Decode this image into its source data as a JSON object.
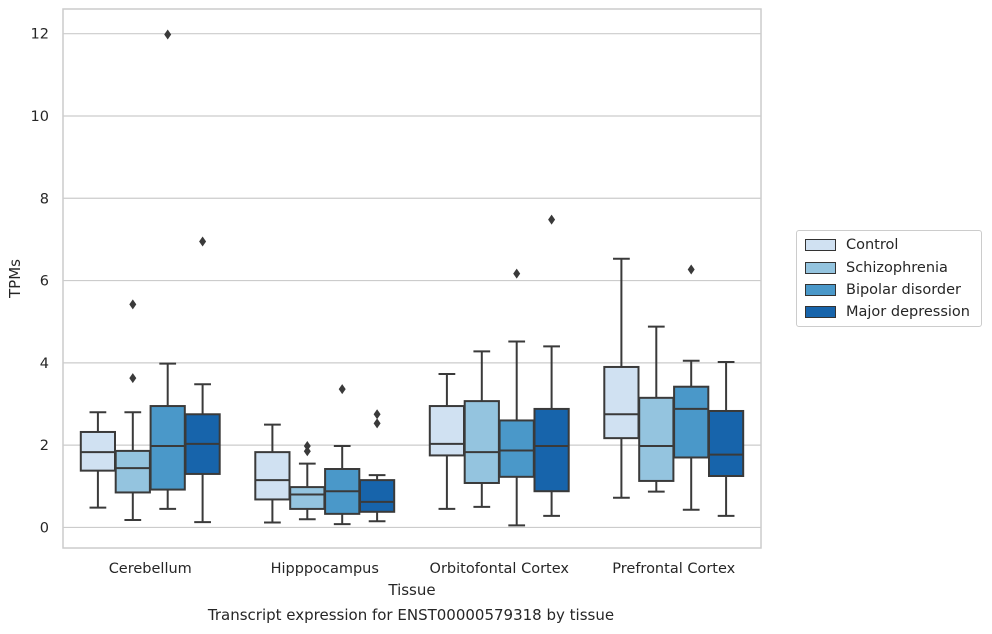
{
  "chart_data": {
    "type": "boxplot",
    "xlabel": "Tissue",
    "ylabel": "TPMs",
    "caption": "Transcript expression for ENST00000579318 by tissue",
    "ylim": [
      -0.5,
      12.6
    ],
    "yticks": [
      0,
      2,
      4,
      6,
      8,
      10,
      12
    ],
    "grid": "horizontal",
    "legend_position": "right",
    "categories": [
      "Cerebellum",
      "Hipppocampus",
      "Orbitofontal Cortex",
      "Prefrontal Cortex"
    ],
    "series": [
      {
        "name": "Control",
        "color": "#d0e1f2",
        "boxes": [
          {
            "whislo": 0.48,
            "q1": 1.38,
            "med": 1.83,
            "q3": 2.32,
            "whishi": 2.8,
            "fliers": []
          },
          {
            "whislo": 0.12,
            "q1": 0.68,
            "med": 1.15,
            "q3": 1.83,
            "whishi": 2.5,
            "fliers": []
          },
          {
            "whislo": 0.45,
            "q1": 1.75,
            "med": 2.03,
            "q3": 2.95,
            "whishi": 3.73,
            "fliers": []
          },
          {
            "whislo": 0.72,
            "q1": 2.17,
            "med": 2.75,
            "q3": 3.9,
            "whishi": 6.53,
            "fliers": []
          }
        ]
      },
      {
        "name": "Schizophrenia",
        "color": "#94c4df",
        "boxes": [
          {
            "whislo": 0.18,
            "q1": 0.85,
            "med": 1.44,
            "q3": 1.86,
            "whishi": 2.8,
            "fliers": [
              3.63,
              5.42
            ]
          },
          {
            "whislo": 0.2,
            "q1": 0.45,
            "med": 0.8,
            "q3": 0.98,
            "whishi": 1.55,
            "fliers": [
              1.85,
              1.98
            ]
          },
          {
            "whislo": 0.5,
            "q1": 1.08,
            "med": 1.83,
            "q3": 3.07,
            "whishi": 4.28,
            "fliers": []
          },
          {
            "whislo": 0.87,
            "q1": 1.13,
            "med": 1.98,
            "q3": 3.15,
            "whishi": 4.88,
            "fliers": []
          }
        ]
      },
      {
        "name": "Bipolar disorder",
        "color": "#4a98c9",
        "boxes": [
          {
            "whislo": 0.45,
            "q1": 0.92,
            "med": 1.98,
            "q3": 2.95,
            "whishi": 3.98,
            "fliers": [
              11.98
            ]
          },
          {
            "whislo": 0.08,
            "q1": 0.33,
            "med": 0.88,
            "q3": 1.42,
            "whishi": 1.98,
            "fliers": [
              3.36
            ]
          },
          {
            "whislo": 0.05,
            "q1": 1.23,
            "med": 1.87,
            "q3": 2.6,
            "whishi": 4.52,
            "fliers": [
              6.17
            ]
          },
          {
            "whislo": 0.43,
            "q1": 1.7,
            "med": 2.88,
            "q3": 3.42,
            "whishi": 4.05,
            "fliers": [
              6.27
            ]
          }
        ]
      },
      {
        "name": "Major depression",
        "color": "#1764ab",
        "boxes": [
          {
            "whislo": 0.13,
            "q1": 1.3,
            "med": 2.03,
            "q3": 2.75,
            "whishi": 3.48,
            "fliers": [
              6.95
            ]
          },
          {
            "whislo": 0.15,
            "q1": 0.38,
            "med": 0.62,
            "q3": 1.15,
            "whishi": 1.27,
            "fliers": [
              2.53,
              2.75
            ]
          },
          {
            "whislo": 0.28,
            "q1": 0.88,
            "med": 1.98,
            "q3": 2.88,
            "whishi": 4.4,
            "fliers": [
              7.48
            ]
          },
          {
            "whislo": 0.28,
            "q1": 1.25,
            "med": 1.77,
            "q3": 2.83,
            "whishi": 4.02,
            "fliers": []
          }
        ]
      }
    ]
  }
}
